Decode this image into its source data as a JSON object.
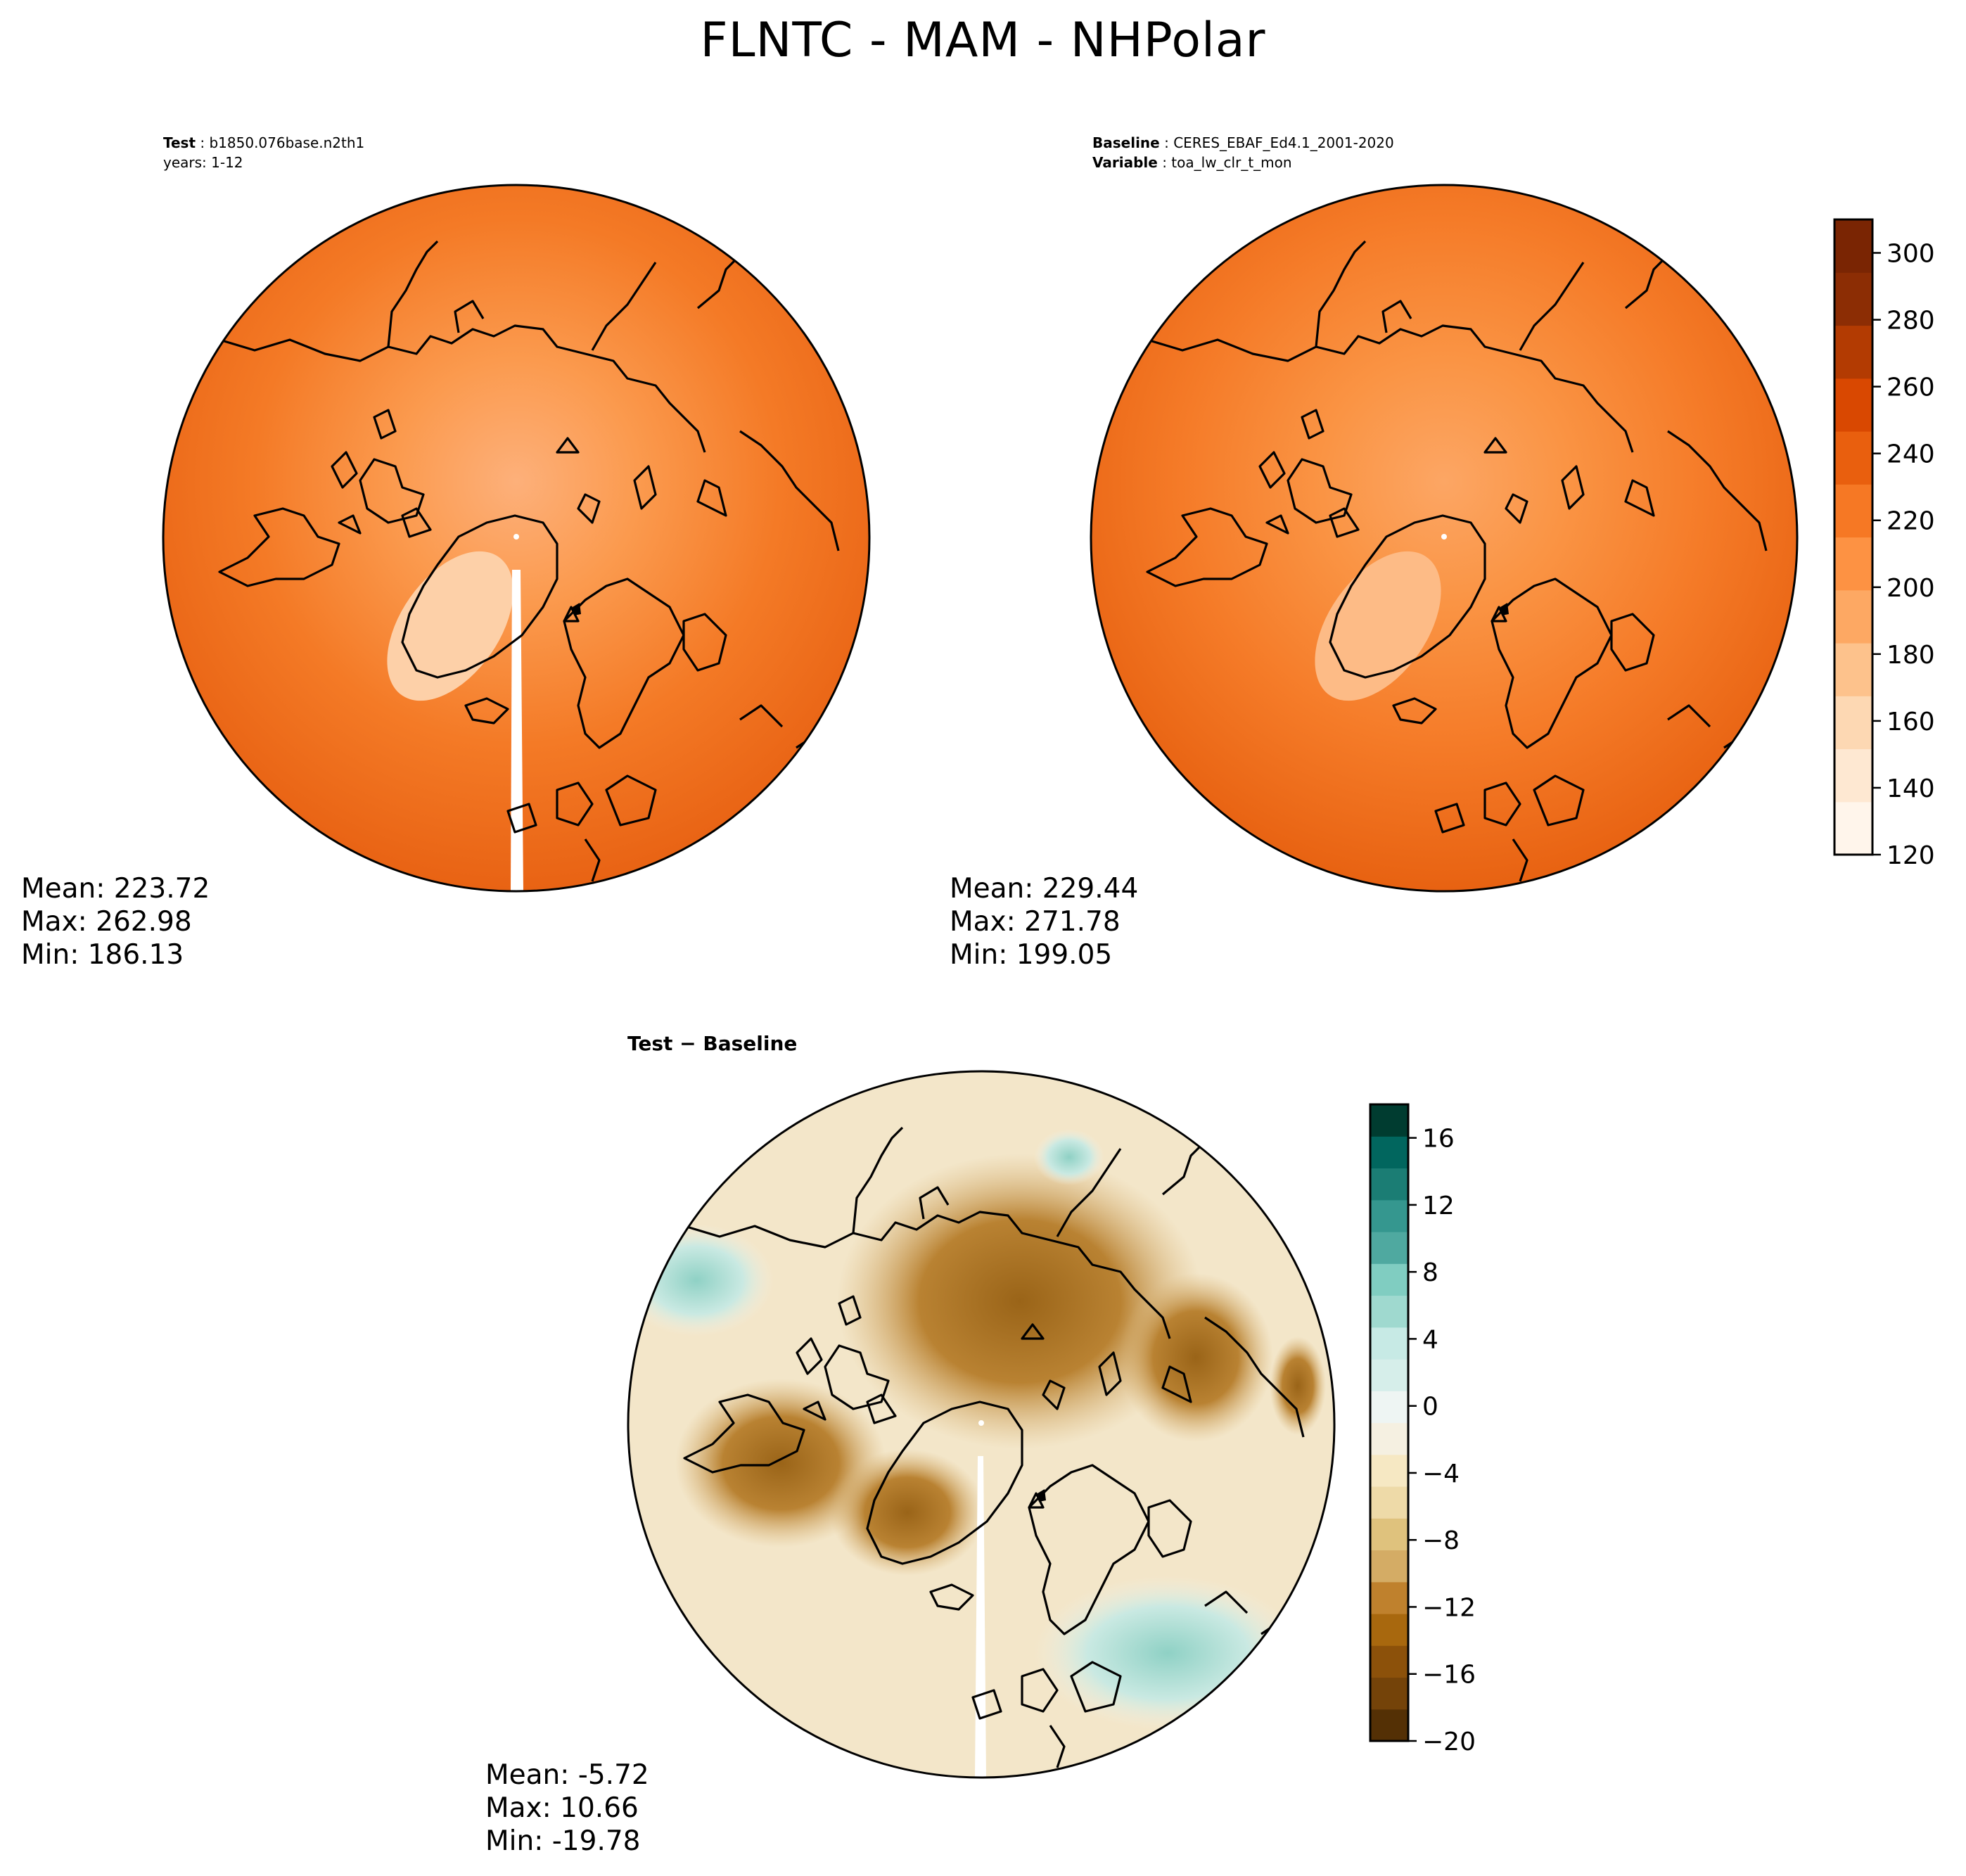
{
  "title": "FLNTC - MAM - NHPolar",
  "test_panel": {
    "label_key": "Test",
    "label_value": "b1850.076base.n2th1",
    "years_text": "years: 1-12",
    "mean_text": "Mean: 223.72",
    "max_text": "Max: 262.98",
    "min_text": "Min: 186.13"
  },
  "baseline_panel": {
    "label_key": "Baseline",
    "label_value": "CERES_EBAF_Ed4.1_2001-2020",
    "variable_key": "Variable",
    "variable_value": "toa_lw_clr_t_mon",
    "mean_text": "Mean: 229.44",
    "max_text": "Max: 271.78",
    "min_text": "Min: 199.05"
  },
  "diff_panel": {
    "title": "Test − Baseline",
    "mean_text": "Mean: -5.72",
    "max_text": "Max: 10.66",
    "min_text": "Min: -19.78"
  },
  "colorbar_main": {
    "ticks": [
      120,
      140,
      160,
      180,
      200,
      220,
      240,
      260,
      280,
      300
    ],
    "min": 120,
    "max": 310,
    "colors": [
      "#fff5eb",
      "#fee8d2",
      "#fdd8b3",
      "#fdc28c",
      "#fda863",
      "#fd9243",
      "#f67824",
      "#e95f0e",
      "#d94801",
      "#b33b02",
      "#8c2d04",
      "#7a2503"
    ]
  },
  "colorbar_diff": {
    "ticks": [
      "16",
      "12",
      "8",
      "4",
      "0",
      "−4",
      "−8",
      "−12",
      "−16",
      "−20"
    ],
    "min": -20,
    "max": 18,
    "colors": [
      "#543005",
      "#744309",
      "#8c510a",
      "#a8680e",
      "#bf812d",
      "#d4ac65",
      "#dfc27d",
      "#eedaa8",
      "#f6e8c3",
      "#f5f0e1",
      "#eef5f3",
      "#d6eeea",
      "#c7eae5",
      "#9fd9cf",
      "#80cdc1",
      "#4fa9a0",
      "#35978f",
      "#1b7d74",
      "#01665e",
      "#003c30"
    ]
  },
  "map_colors": {
    "test": {
      "outer": "#e65e10",
      "mid": "#f47a26",
      "inner": "#fb9a4e",
      "pole": "#fdb07a",
      "greenland": "#fdd0a8"
    },
    "baseline": {
      "outer": "#e55d0d",
      "mid": "#f57b28",
      "inner": "#fa9444",
      "pole": "#fca664",
      "greenland": "#fdbb86"
    },
    "diff": {
      "base": "#f3e6c9",
      "brown_dark": "#9a6418",
      "brown_mid": "#b98232",
      "brown_light": "#d9b476",
      "teal_light": "#c9e9e2",
      "teal_mid": "#8fd1c5",
      "neutral": "#f3f0e4"
    }
  }
}
